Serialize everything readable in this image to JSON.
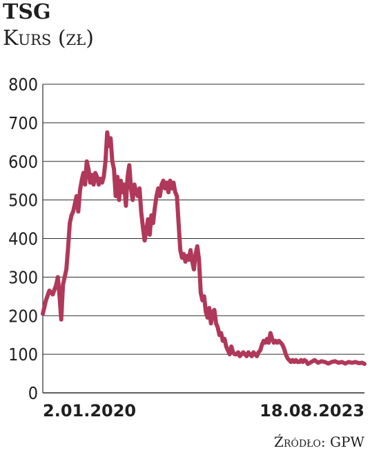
{
  "header": {
    "title": "TSG",
    "subtitle": "Kurs (zł)"
  },
  "footer": {
    "source": "Źródło: GPW"
  },
  "chart_data": {
    "type": "line",
    "title": "TSG",
    "ylabel": "Kurs (zł)",
    "xlabel": "",
    "ylim": [
      0,
      800
    ],
    "yticks": [
      0,
      100,
      200,
      300,
      400,
      500,
      600,
      700,
      800
    ],
    "x_tick_labels": [
      "2.01.2020",
      "18.08.2023"
    ],
    "x_range": [
      "2020-01-02",
      "2023-08-18"
    ],
    "grid": true,
    "line_color": "#b0385a",
    "series": [
      {
        "values": [
          [
            "2020-01-02",
            205
          ],
          [
            "2020-01-15",
            240
          ],
          [
            "2020-01-29",
            265
          ],
          [
            "2020-02-12",
            255
          ],
          [
            "2020-02-26",
            280
          ],
          [
            "2020-03-04",
            300
          ],
          [
            "2020-03-11",
            250
          ],
          [
            "2020-03-18",
            190
          ],
          [
            "2020-03-25",
            280
          ],
          [
            "2020-04-01",
            300
          ],
          [
            "2020-04-08",
            320
          ],
          [
            "2020-04-15",
            375
          ],
          [
            "2020-04-22",
            440
          ],
          [
            "2020-04-29",
            460
          ],
          [
            "2020-05-06",
            470
          ],
          [
            "2020-05-13",
            490
          ],
          [
            "2020-05-20",
            510
          ],
          [
            "2020-05-27",
            470
          ],
          [
            "2020-06-03",
            525
          ],
          [
            "2020-06-10",
            550
          ],
          [
            "2020-06-17",
            570
          ],
          [
            "2020-06-24",
            540
          ],
          [
            "2020-07-01",
            600
          ],
          [
            "2020-07-08",
            580
          ],
          [
            "2020-07-15",
            545
          ],
          [
            "2020-07-22",
            565
          ],
          [
            "2020-07-29",
            540
          ],
          [
            "2020-08-05",
            570
          ],
          [
            "2020-08-12",
            560
          ],
          [
            "2020-08-19",
            540
          ],
          [
            "2020-08-26",
            555
          ],
          [
            "2020-09-02",
            545
          ],
          [
            "2020-09-09",
            560
          ],
          [
            "2020-09-16",
            600
          ],
          [
            "2020-09-23",
            675
          ],
          [
            "2020-09-30",
            640
          ],
          [
            "2020-10-07",
            660
          ],
          [
            "2020-10-14",
            600
          ],
          [
            "2020-10-21",
            580
          ],
          [
            "2020-10-28",
            510
          ],
          [
            "2020-11-04",
            560
          ],
          [
            "2020-11-11",
            500
          ],
          [
            "2020-11-18",
            550
          ],
          [
            "2020-11-25",
            520
          ],
          [
            "2020-12-02",
            540
          ],
          [
            "2020-12-09",
            485
          ],
          [
            "2020-12-16",
            560
          ],
          [
            "2020-12-23",
            590
          ],
          [
            "2020-12-30",
            530
          ],
          [
            "2021-01-06",
            500
          ],
          [
            "2021-01-13",
            540
          ],
          [
            "2021-01-20",
            520
          ],
          [
            "2021-01-27",
            510
          ],
          [
            "2021-02-03",
            530
          ],
          [
            "2021-02-10",
            470
          ],
          [
            "2021-02-17",
            430
          ],
          [
            "2021-02-24",
            395
          ],
          [
            "2021-03-03",
            420
          ],
          [
            "2021-03-10",
            450
          ],
          [
            "2021-03-17",
            410
          ],
          [
            "2021-03-24",
            460
          ],
          [
            "2021-03-31",
            440
          ],
          [
            "2021-04-07",
            480
          ],
          [
            "2021-04-14",
            510
          ],
          [
            "2021-04-21",
            530
          ],
          [
            "2021-04-28",
            510
          ],
          [
            "2021-05-05",
            540
          ],
          [
            "2021-05-12",
            550
          ],
          [
            "2021-05-19",
            530
          ],
          [
            "2021-05-26",
            545
          ],
          [
            "2021-06-02",
            520
          ],
          [
            "2021-06-09",
            550
          ],
          [
            "2021-06-16",
            530
          ],
          [
            "2021-06-23",
            545
          ],
          [
            "2021-06-30",
            520
          ],
          [
            "2021-07-07",
            510
          ],
          [
            "2021-07-14",
            440
          ],
          [
            "2021-07-21",
            370
          ],
          [
            "2021-07-28",
            350
          ],
          [
            "2021-08-04",
            360
          ],
          [
            "2021-08-11",
            340
          ],
          [
            "2021-08-18",
            355
          ],
          [
            "2021-08-25",
            345
          ],
          [
            "2021-09-01",
            370
          ],
          [
            "2021-09-08",
            340
          ],
          [
            "2021-09-15",
            320
          ],
          [
            "2021-09-22",
            360
          ],
          [
            "2021-09-29",
            380
          ],
          [
            "2021-10-06",
            345
          ],
          [
            "2021-10-13",
            260
          ],
          [
            "2021-10-20",
            240
          ],
          [
            "2021-10-27",
            250
          ],
          [
            "2021-11-03",
            210
          ],
          [
            "2021-11-10",
            195
          ],
          [
            "2021-11-17",
            220
          ],
          [
            "2021-11-24",
            180
          ],
          [
            "2021-12-01",
            210
          ],
          [
            "2021-12-08",
            215
          ],
          [
            "2021-12-15",
            180
          ],
          [
            "2021-12-22",
            170
          ],
          [
            "2021-12-29",
            150
          ],
          [
            "2022-01-05",
            155
          ],
          [
            "2022-01-12",
            135
          ],
          [
            "2022-01-19",
            140
          ],
          [
            "2022-01-26",
            120
          ],
          [
            "2022-02-02",
            110
          ],
          [
            "2022-02-09",
            100
          ],
          [
            "2022-02-16",
            120
          ],
          [
            "2022-02-23",
            105
          ],
          [
            "2022-03-02",
            100
          ],
          [
            "2022-03-09",
            100
          ],
          [
            "2022-03-16",
            105
          ],
          [
            "2022-03-23",
            95
          ],
          [
            "2022-03-30",
            100
          ],
          [
            "2022-04-06",
            105
          ],
          [
            "2022-04-13",
            100
          ],
          [
            "2022-04-20",
            95
          ],
          [
            "2022-04-27",
            105
          ],
          [
            "2022-05-04",
            100
          ],
          [
            "2022-05-11",
            95
          ],
          [
            "2022-05-18",
            105
          ],
          [
            "2022-05-25",
            100
          ],
          [
            "2022-06-01",
            95
          ],
          [
            "2022-06-08",
            105
          ],
          [
            "2022-06-15",
            110
          ],
          [
            "2022-06-22",
            125
          ],
          [
            "2022-06-29",
            135
          ],
          [
            "2022-07-06",
            130
          ],
          [
            "2022-07-13",
            140
          ],
          [
            "2022-07-20",
            130
          ],
          [
            "2022-07-27",
            155
          ],
          [
            "2022-08-03",
            140
          ],
          [
            "2022-08-10",
            130
          ],
          [
            "2022-08-17",
            135
          ],
          [
            "2022-08-24",
            130
          ],
          [
            "2022-08-31",
            135
          ],
          [
            "2022-09-07",
            130
          ],
          [
            "2022-09-14",
            125
          ],
          [
            "2022-09-21",
            115
          ],
          [
            "2022-09-28",
            100
          ],
          [
            "2022-10-05",
            90
          ],
          [
            "2022-10-12",
            85
          ],
          [
            "2022-10-19",
            80
          ],
          [
            "2022-10-26",
            85
          ],
          [
            "2022-11-02",
            80
          ],
          [
            "2022-11-09",
            85
          ],
          [
            "2022-11-16",
            80
          ],
          [
            "2022-11-23",
            80
          ],
          [
            "2022-11-30",
            85
          ],
          [
            "2022-12-07",
            80
          ],
          [
            "2022-12-14",
            85
          ],
          [
            "2022-12-21",
            82
          ],
          [
            "2022-12-28",
            75
          ],
          [
            "2023-01-11",
            80
          ],
          [
            "2023-01-25",
            85
          ],
          [
            "2023-02-08",
            78
          ],
          [
            "2023-02-22",
            82
          ],
          [
            "2023-03-08",
            80
          ],
          [
            "2023-03-22",
            76
          ],
          [
            "2023-04-05",
            80
          ],
          [
            "2023-04-19",
            82
          ],
          [
            "2023-05-03",
            78
          ],
          [
            "2023-05-17",
            80
          ],
          [
            "2023-05-31",
            76
          ],
          [
            "2023-06-14",
            80
          ],
          [
            "2023-06-28",
            78
          ],
          [
            "2023-07-12",
            80
          ],
          [
            "2023-07-26",
            77
          ],
          [
            "2023-08-09",
            78
          ],
          [
            "2023-08-18",
            75
          ]
        ]
      }
    ]
  }
}
